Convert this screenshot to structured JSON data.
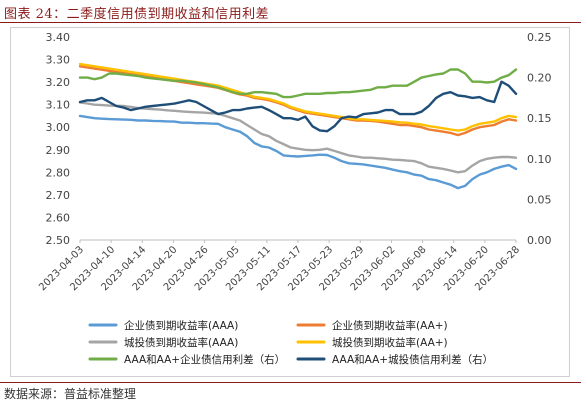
{
  "title": "图表 24：二季度信用债到期收益和信用利差",
  "source": "数据来源：普益标准整理",
  "chart_data": {
    "type": "line",
    "yleft": {
      "lim": [
        2.5,
        3.4
      ],
      "ticks": [
        "2.50",
        "2.60",
        "2.70",
        "2.80",
        "2.90",
        "3.00",
        "3.10",
        "3.20",
        "3.30",
        "3.40"
      ]
    },
    "yright": {
      "lim": [
        0.0,
        0.25
      ],
      "ticks": [
        "0.00",
        "0.05",
        "0.10",
        "0.15",
        "0.20",
        "0.25"
      ]
    },
    "x_ticks": [
      "2023-04-03",
      "2023-04-10",
      "2023-04-14",
      "2023-04-20",
      "2023-04-26",
      "2023-05-05",
      "2023-05-11",
      "2023-05-17",
      "2023-05-23",
      "2023-05-29",
      "2023-06-02",
      "2023-06-08",
      "2023-06-14",
      "2023-06-20",
      "2023-06-28"
    ],
    "n_points": 61,
    "series": [
      {
        "name": "企业债到期收益率(AAA)",
        "axis": "left",
        "color": "#5b9bd5",
        "values": [
          3.05,
          3.045,
          3.04,
          3.038,
          3.036,
          3.035,
          3.034,
          3.033,
          3.03,
          3.03,
          3.028,
          3.027,
          3.026,
          3.025,
          3.02,
          3.02,
          3.018,
          3.018,
          3.016,
          3.015,
          3.0,
          2.99,
          2.98,
          2.96,
          2.93,
          2.915,
          2.91,
          2.895,
          2.875,
          2.872,
          2.87,
          2.873,
          2.875,
          2.878,
          2.877,
          2.865,
          2.85,
          2.84,
          2.838,
          2.835,
          2.83,
          2.825,
          2.82,
          2.812,
          2.805,
          2.8,
          2.79,
          2.785,
          2.77,
          2.765,
          2.755,
          2.745,
          2.73,
          2.74,
          2.77,
          2.79,
          2.8,
          2.815,
          2.825,
          2.832,
          2.815
        ]
      },
      {
        "name": "企业债到期收益率(AA+)",
        "axis": "left",
        "color": "#ed7d31",
        "values": [
          3.27,
          3.265,
          3.26,
          3.255,
          3.25,
          3.245,
          3.24,
          3.235,
          3.23,
          3.225,
          3.22,
          3.215,
          3.21,
          3.205,
          3.2,
          3.195,
          3.19,
          3.185,
          3.18,
          3.175,
          3.165,
          3.155,
          3.145,
          3.14,
          3.13,
          3.125,
          3.12,
          3.11,
          3.1,
          3.085,
          3.075,
          3.065,
          3.06,
          3.055,
          3.05,
          3.045,
          3.04,
          3.035,
          3.03,
          3.03,
          3.028,
          3.025,
          3.02,
          3.015,
          3.01,
          3.01,
          3.005,
          3.0,
          2.99,
          2.985,
          2.98,
          2.975,
          2.965,
          2.975,
          2.99,
          3.0,
          3.005,
          3.01,
          3.025,
          3.035,
          3.03
        ]
      },
      {
        "name": "城投债到期收益率(AAA)",
        "axis": "left",
        "color": "#a5a5a5",
        "values": [
          3.11,
          3.105,
          3.1,
          3.098,
          3.096,
          3.095,
          3.094,
          3.09,
          3.085,
          3.082,
          3.08,
          3.078,
          3.075,
          3.073,
          3.07,
          3.068,
          3.066,
          3.065,
          3.062,
          3.06,
          3.05,
          3.04,
          3.03,
          3.01,
          2.99,
          2.97,
          2.96,
          2.94,
          2.925,
          2.91,
          2.905,
          2.9,
          2.898,
          2.9,
          2.905,
          2.895,
          2.885,
          2.875,
          2.87,
          2.865,
          2.865,
          2.862,
          2.86,
          2.856,
          2.855,
          2.852,
          2.85,
          2.84,
          2.825,
          2.82,
          2.815,
          2.808,
          2.8,
          2.805,
          2.83,
          2.85,
          2.86,
          2.865,
          2.868,
          2.868,
          2.865
        ]
      },
      {
        "name": "城投债到期收益率(AA+)",
        "axis": "left",
        "color": "#ffc000",
        "values": [
          3.28,
          3.275,
          3.27,
          3.265,
          3.26,
          3.255,
          3.25,
          3.245,
          3.24,
          3.235,
          3.23,
          3.225,
          3.22,
          3.215,
          3.21,
          3.205,
          3.2,
          3.195,
          3.19,
          3.185,
          3.175,
          3.165,
          3.155,
          3.145,
          3.135,
          3.13,
          3.125,
          3.115,
          3.105,
          3.09,
          3.08,
          3.07,
          3.065,
          3.06,
          3.055,
          3.05,
          3.045,
          3.04,
          3.035,
          3.035,
          3.032,
          3.03,
          3.028,
          3.025,
          3.022,
          3.02,
          3.015,
          3.012,
          3.005,
          3.0,
          2.995,
          2.99,
          2.985,
          2.99,
          3.005,
          3.015,
          3.02,
          3.025,
          3.04,
          3.05,
          3.045
        ]
      },
      {
        "name": "AAA和AA+企业债信用利差（右）",
        "axis": "right",
        "color": "#70ad47",
        "values": [
          0.2,
          0.2,
          0.198,
          0.2,
          0.205,
          0.205,
          0.204,
          0.203,
          0.202,
          0.2,
          0.199,
          0.198,
          0.197,
          0.196,
          0.196,
          0.195,
          0.194,
          0.192,
          0.19,
          0.188,
          0.185,
          0.182,
          0.18,
          0.18,
          0.182,
          0.182,
          0.181,
          0.18,
          0.176,
          0.176,
          0.178,
          0.18,
          0.18,
          0.18,
          0.181,
          0.181,
          0.182,
          0.182,
          0.183,
          0.184,
          0.185,
          0.188,
          0.188,
          0.19,
          0.19,
          0.19,
          0.195,
          0.2,
          0.202,
          0.204,
          0.205,
          0.21,
          0.21,
          0.205,
          0.195,
          0.195,
          0.194,
          0.195,
          0.2,
          0.203,
          0.21
        ]
      },
      {
        "name": "AAA和AA+城投债信用利差（右）",
        "axis": "right",
        "color": "#1f4e79",
        "values": [
          0.17,
          0.172,
          0.172,
          0.175,
          0.17,
          0.165,
          0.163,
          0.16,
          0.162,
          0.164,
          0.165,
          0.166,
          0.167,
          0.168,
          0.17,
          0.172,
          0.17,
          0.165,
          0.16,
          0.155,
          0.157,
          0.16,
          0.16,
          0.162,
          0.163,
          0.164,
          0.16,
          0.155,
          0.15,
          0.15,
          0.148,
          0.152,
          0.14,
          0.135,
          0.134,
          0.14,
          0.15,
          0.152,
          0.151,
          0.155,
          0.156,
          0.157,
          0.16,
          0.16,
          0.155,
          0.155,
          0.155,
          0.158,
          0.165,
          0.175,
          0.18,
          0.182,
          0.178,
          0.177,
          0.175,
          0.176,
          0.172,
          0.17,
          0.195,
          0.19,
          0.18
        ]
      }
    ],
    "legend_position": "bottom"
  }
}
